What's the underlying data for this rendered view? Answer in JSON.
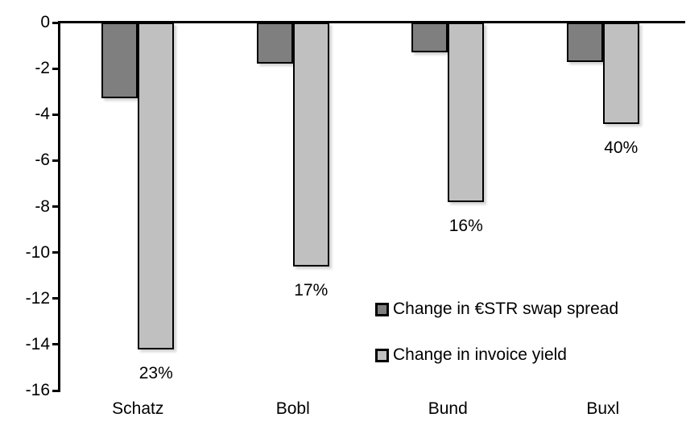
{
  "chart_data": {
    "type": "bar",
    "title": "",
    "xlabel": "",
    "ylabel": "",
    "categories": [
      "Schatz",
      "Bobl",
      "Bund",
      "Buxl"
    ],
    "series": [
      {
        "name": "Change in €STR swap spread",
        "color": "#7f7f7f",
        "values": [
          -3.3,
          -1.8,
          -1.3,
          -1.7
        ]
      },
      {
        "name": "Change in invoice yield",
        "color": "#c0c0c0",
        "values": [
          -14.2,
          -10.6,
          -7.8,
          -4.4
        ]
      }
    ],
    "bar_labels": {
      "series": "Change in invoice yield",
      "values": [
        "23%",
        "17%",
        "16%",
        "40%"
      ]
    },
    "ylim": [
      -16,
      0
    ],
    "yticks": [
      0,
      -2,
      -4,
      -6,
      -8,
      -10,
      -12,
      -14,
      -16
    ],
    "grid": false,
    "legend_position": "inside-right",
    "axis_color": "#000000",
    "background_color": "#ffffff"
  },
  "legend": {
    "item1": "Change in €STR swap spread",
    "item2": "Change in invoice yield"
  }
}
